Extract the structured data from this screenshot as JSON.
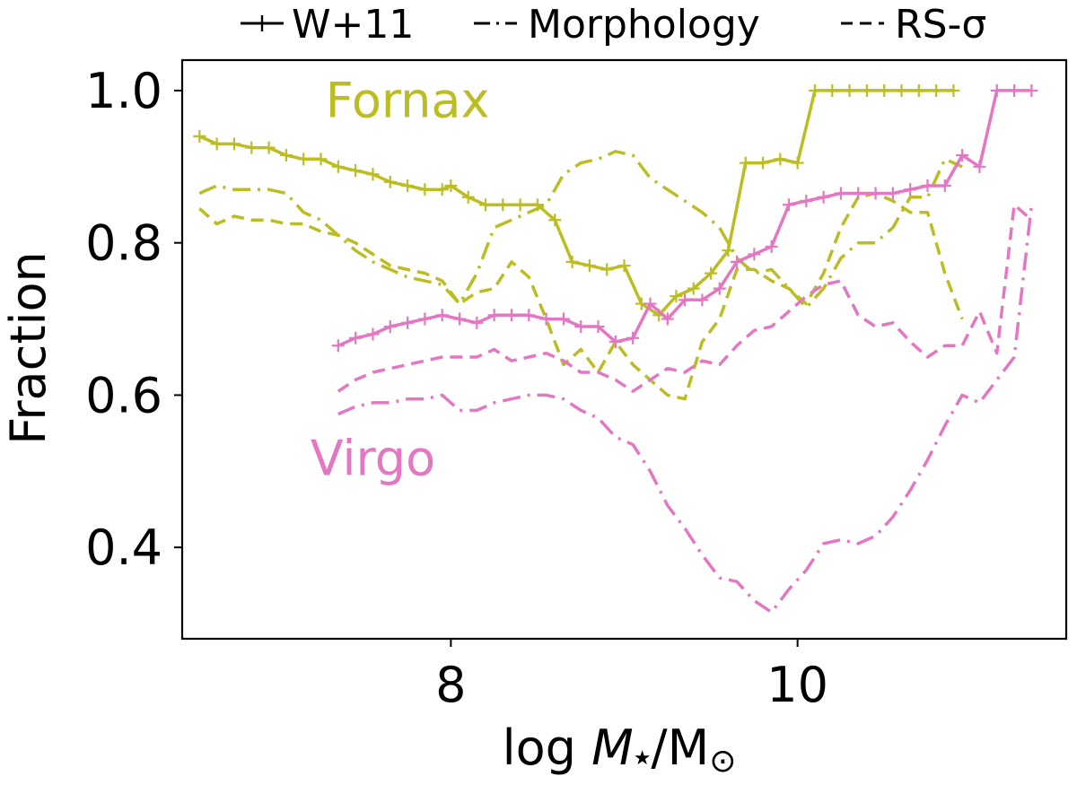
{
  "chart_data": {
    "type": "line",
    "title": "",
    "xlabel": "log M★/M⊙",
    "xlabel_parts": {
      "prefix": "log ",
      "symbol": "M",
      "star": "★",
      "unit": "/M",
      "sun": "⊙"
    },
    "ylabel": "Fraction",
    "xlim": [
      6.45,
      11.55
    ],
    "ylim": [
      0.28,
      1.04
    ],
    "x_ticks": [
      8,
      10
    ],
    "x_tick_labels": [
      "8",
      "10"
    ],
    "y_ticks": [
      0.4,
      0.6,
      0.8,
      1.0
    ],
    "y_tick_labels": [
      "0.4",
      "0.6",
      "0.8",
      "1.0"
    ],
    "grid": false,
    "legend": {
      "position": "top",
      "entries": [
        {
          "label": "W+11",
          "style": "solid-plus"
        },
        {
          "label": "Morphology",
          "style": "dashdot"
        },
        {
          "label": "RS-σ",
          "style": "dashed"
        }
      ]
    },
    "colors": {
      "Fornax": "#bcbd22",
      "Virgo": "#e377c2"
    },
    "annotations": [
      {
        "text": "Fornax",
        "x": 7.75,
        "y": 0.965,
        "group": "Fornax"
      },
      {
        "text": "Virgo",
        "x": 7.55,
        "y": 0.495,
        "group": "Virgo"
      }
    ],
    "series": [
      {
        "name": "Fornax W+11",
        "group": "Fornax",
        "style": "solid-plus",
        "x": [
          6.55,
          6.65,
          6.75,
          6.85,
          6.95,
          7.05,
          7.15,
          7.25,
          7.35,
          7.45,
          7.55,
          7.65,
          7.75,
          7.85,
          7.95,
          8.0,
          8.1,
          8.2,
          8.3,
          8.4,
          8.5,
          8.6,
          8.7,
          8.8,
          8.9,
          9.0,
          9.1,
          9.2,
          9.3,
          9.4,
          9.5,
          9.6,
          9.7,
          9.8,
          9.9,
          10.0,
          10.1,
          10.2,
          10.3,
          10.4,
          10.5,
          10.6,
          10.7,
          10.8,
          10.9
        ],
        "y": [
          0.94,
          0.93,
          0.93,
          0.925,
          0.925,
          0.915,
          0.91,
          0.91,
          0.9,
          0.895,
          0.89,
          0.88,
          0.875,
          0.87,
          0.87,
          0.875,
          0.86,
          0.85,
          0.85,
          0.85,
          0.85,
          0.83,
          0.775,
          0.77,
          0.765,
          0.77,
          0.72,
          0.705,
          0.73,
          0.74,
          0.76,
          0.79,
          0.905,
          0.905,
          0.91,
          0.905,
          1.0,
          1.0,
          1.0,
          1.0,
          1.0,
          1.0,
          1.0,
          1.0,
          1.0
        ]
      },
      {
        "name": "Fornax Morphology",
        "group": "Fornax",
        "style": "dashdot",
        "x": [
          6.55,
          6.65,
          6.75,
          6.85,
          6.95,
          7.05,
          7.15,
          7.25,
          7.35,
          7.45,
          7.55,
          7.65,
          7.75,
          7.85,
          7.95,
          8.05,
          8.15,
          8.25,
          8.35,
          8.45,
          8.55,
          8.65,
          8.75,
          8.85,
          8.95,
          9.05,
          9.15,
          9.25,
          9.35,
          9.45,
          9.55,
          9.65,
          9.75,
          9.85,
          9.95,
          10.05,
          10.15,
          10.25,
          10.35,
          10.45,
          10.55,
          10.65,
          10.75,
          10.85,
          10.95
        ],
        "y": [
          0.865,
          0.875,
          0.87,
          0.87,
          0.87,
          0.865,
          0.84,
          0.83,
          0.81,
          0.79,
          0.775,
          0.765,
          0.755,
          0.75,
          0.745,
          0.72,
          0.76,
          0.82,
          0.83,
          0.84,
          0.85,
          0.89,
          0.905,
          0.91,
          0.92,
          0.915,
          0.885,
          0.87,
          0.855,
          0.84,
          0.82,
          0.78,
          0.76,
          0.765,
          0.74,
          0.715,
          0.74,
          0.78,
          0.8,
          0.8,
          0.82,
          0.86,
          0.86,
          0.91,
          0.9
        ]
      },
      {
        "name": "Fornax RS-σ",
        "group": "Fornax",
        "style": "dashed",
        "x": [
          6.55,
          6.65,
          6.75,
          6.85,
          6.95,
          7.05,
          7.15,
          7.25,
          7.35,
          7.45,
          7.55,
          7.65,
          7.75,
          7.85,
          7.95,
          8.05,
          8.15,
          8.25,
          8.35,
          8.45,
          8.55,
          8.65,
          8.75,
          8.85,
          8.95,
          9.05,
          9.15,
          9.25,
          9.35,
          9.45,
          9.55,
          9.65,
          9.75,
          9.85,
          9.95,
          10.05,
          10.15,
          10.25,
          10.35,
          10.45,
          10.55,
          10.65,
          10.75,
          10.85,
          10.95
        ],
        "y": [
          0.845,
          0.825,
          0.835,
          0.83,
          0.83,
          0.825,
          0.825,
          0.815,
          0.81,
          0.8,
          0.785,
          0.77,
          0.765,
          0.76,
          0.75,
          0.72,
          0.735,
          0.74,
          0.775,
          0.755,
          0.7,
          0.64,
          0.66,
          0.63,
          0.67,
          0.64,
          0.62,
          0.6,
          0.595,
          0.67,
          0.7,
          0.765,
          0.765,
          0.75,
          0.74,
          0.72,
          0.76,
          0.82,
          0.86,
          0.865,
          0.855,
          0.84,
          0.84,
          0.76,
          0.7
        ]
      },
      {
        "name": "Virgo W+11",
        "group": "Virgo",
        "style": "solid-plus",
        "x": [
          7.35,
          7.45,
          7.55,
          7.65,
          7.75,
          7.85,
          7.95,
          8.05,
          8.15,
          8.25,
          8.35,
          8.45,
          8.55,
          8.65,
          8.75,
          8.85,
          8.95,
          9.05,
          9.15,
          9.25,
          9.35,
          9.45,
          9.55,
          9.65,
          9.75,
          9.85,
          9.95,
          10.05,
          10.15,
          10.25,
          10.35,
          10.45,
          10.55,
          10.65,
          10.75,
          10.85,
          10.95,
          11.05,
          11.15,
          11.25,
          11.35
        ],
        "y": [
          0.665,
          0.675,
          0.68,
          0.69,
          0.695,
          0.7,
          0.705,
          0.7,
          0.695,
          0.705,
          0.705,
          0.705,
          0.7,
          0.7,
          0.69,
          0.69,
          0.67,
          0.675,
          0.72,
          0.7,
          0.725,
          0.725,
          0.74,
          0.775,
          0.785,
          0.795,
          0.85,
          0.855,
          0.86,
          0.865,
          0.865,
          0.865,
          0.865,
          0.87,
          0.875,
          0.875,
          0.915,
          0.9,
          1.0,
          1.0,
          1.0
        ]
      },
      {
        "name": "Virgo Morphology",
        "group": "Virgo",
        "style": "dashdot",
        "x": [
          7.35,
          7.45,
          7.55,
          7.65,
          7.75,
          7.85,
          7.95,
          8.05,
          8.15,
          8.25,
          8.35,
          8.45,
          8.55,
          8.65,
          8.75,
          8.85,
          8.95,
          9.05,
          9.15,
          9.25,
          9.35,
          9.45,
          9.55,
          9.65,
          9.75,
          9.85,
          9.95,
          10.05,
          10.15,
          10.25,
          10.35,
          10.45,
          10.55,
          10.65,
          10.75,
          10.85,
          10.95,
          11.05,
          11.15,
          11.25,
          11.35
        ],
        "y": [
          0.575,
          0.585,
          0.59,
          0.59,
          0.595,
          0.595,
          0.6,
          0.58,
          0.58,
          0.59,
          0.595,
          0.6,
          0.6,
          0.595,
          0.58,
          0.57,
          0.545,
          0.535,
          0.5,
          0.455,
          0.425,
          0.39,
          0.36,
          0.355,
          0.33,
          0.315,
          0.345,
          0.37,
          0.405,
          0.41,
          0.405,
          0.415,
          0.44,
          0.475,
          0.515,
          0.56,
          0.6,
          0.59,
          0.62,
          0.65,
          0.85
        ]
      },
      {
        "name": "Virgo RS-σ",
        "group": "Virgo",
        "style": "dashed",
        "x": [
          7.35,
          7.45,
          7.55,
          7.65,
          7.75,
          7.85,
          7.95,
          8.05,
          8.15,
          8.25,
          8.35,
          8.45,
          8.55,
          8.65,
          8.75,
          8.85,
          8.95,
          9.05,
          9.15,
          9.25,
          9.35,
          9.45,
          9.55,
          9.65,
          9.75,
          9.85,
          9.95,
          10.05,
          10.15,
          10.25,
          10.35,
          10.45,
          10.55,
          10.65,
          10.75,
          10.85,
          10.95,
          11.05,
          11.15,
          11.25,
          11.35
        ],
        "y": [
          0.605,
          0.62,
          0.63,
          0.635,
          0.64,
          0.645,
          0.65,
          0.65,
          0.65,
          0.66,
          0.645,
          0.65,
          0.655,
          0.645,
          0.63,
          0.63,
          0.62,
          0.605,
          0.62,
          0.635,
          0.63,
          0.645,
          0.64,
          0.665,
          0.685,
          0.69,
          0.71,
          0.73,
          0.745,
          0.75,
          0.705,
          0.69,
          0.695,
          0.67,
          0.65,
          0.665,
          0.665,
          0.71,
          0.655,
          0.85,
          0.83
        ]
      }
    ]
  }
}
